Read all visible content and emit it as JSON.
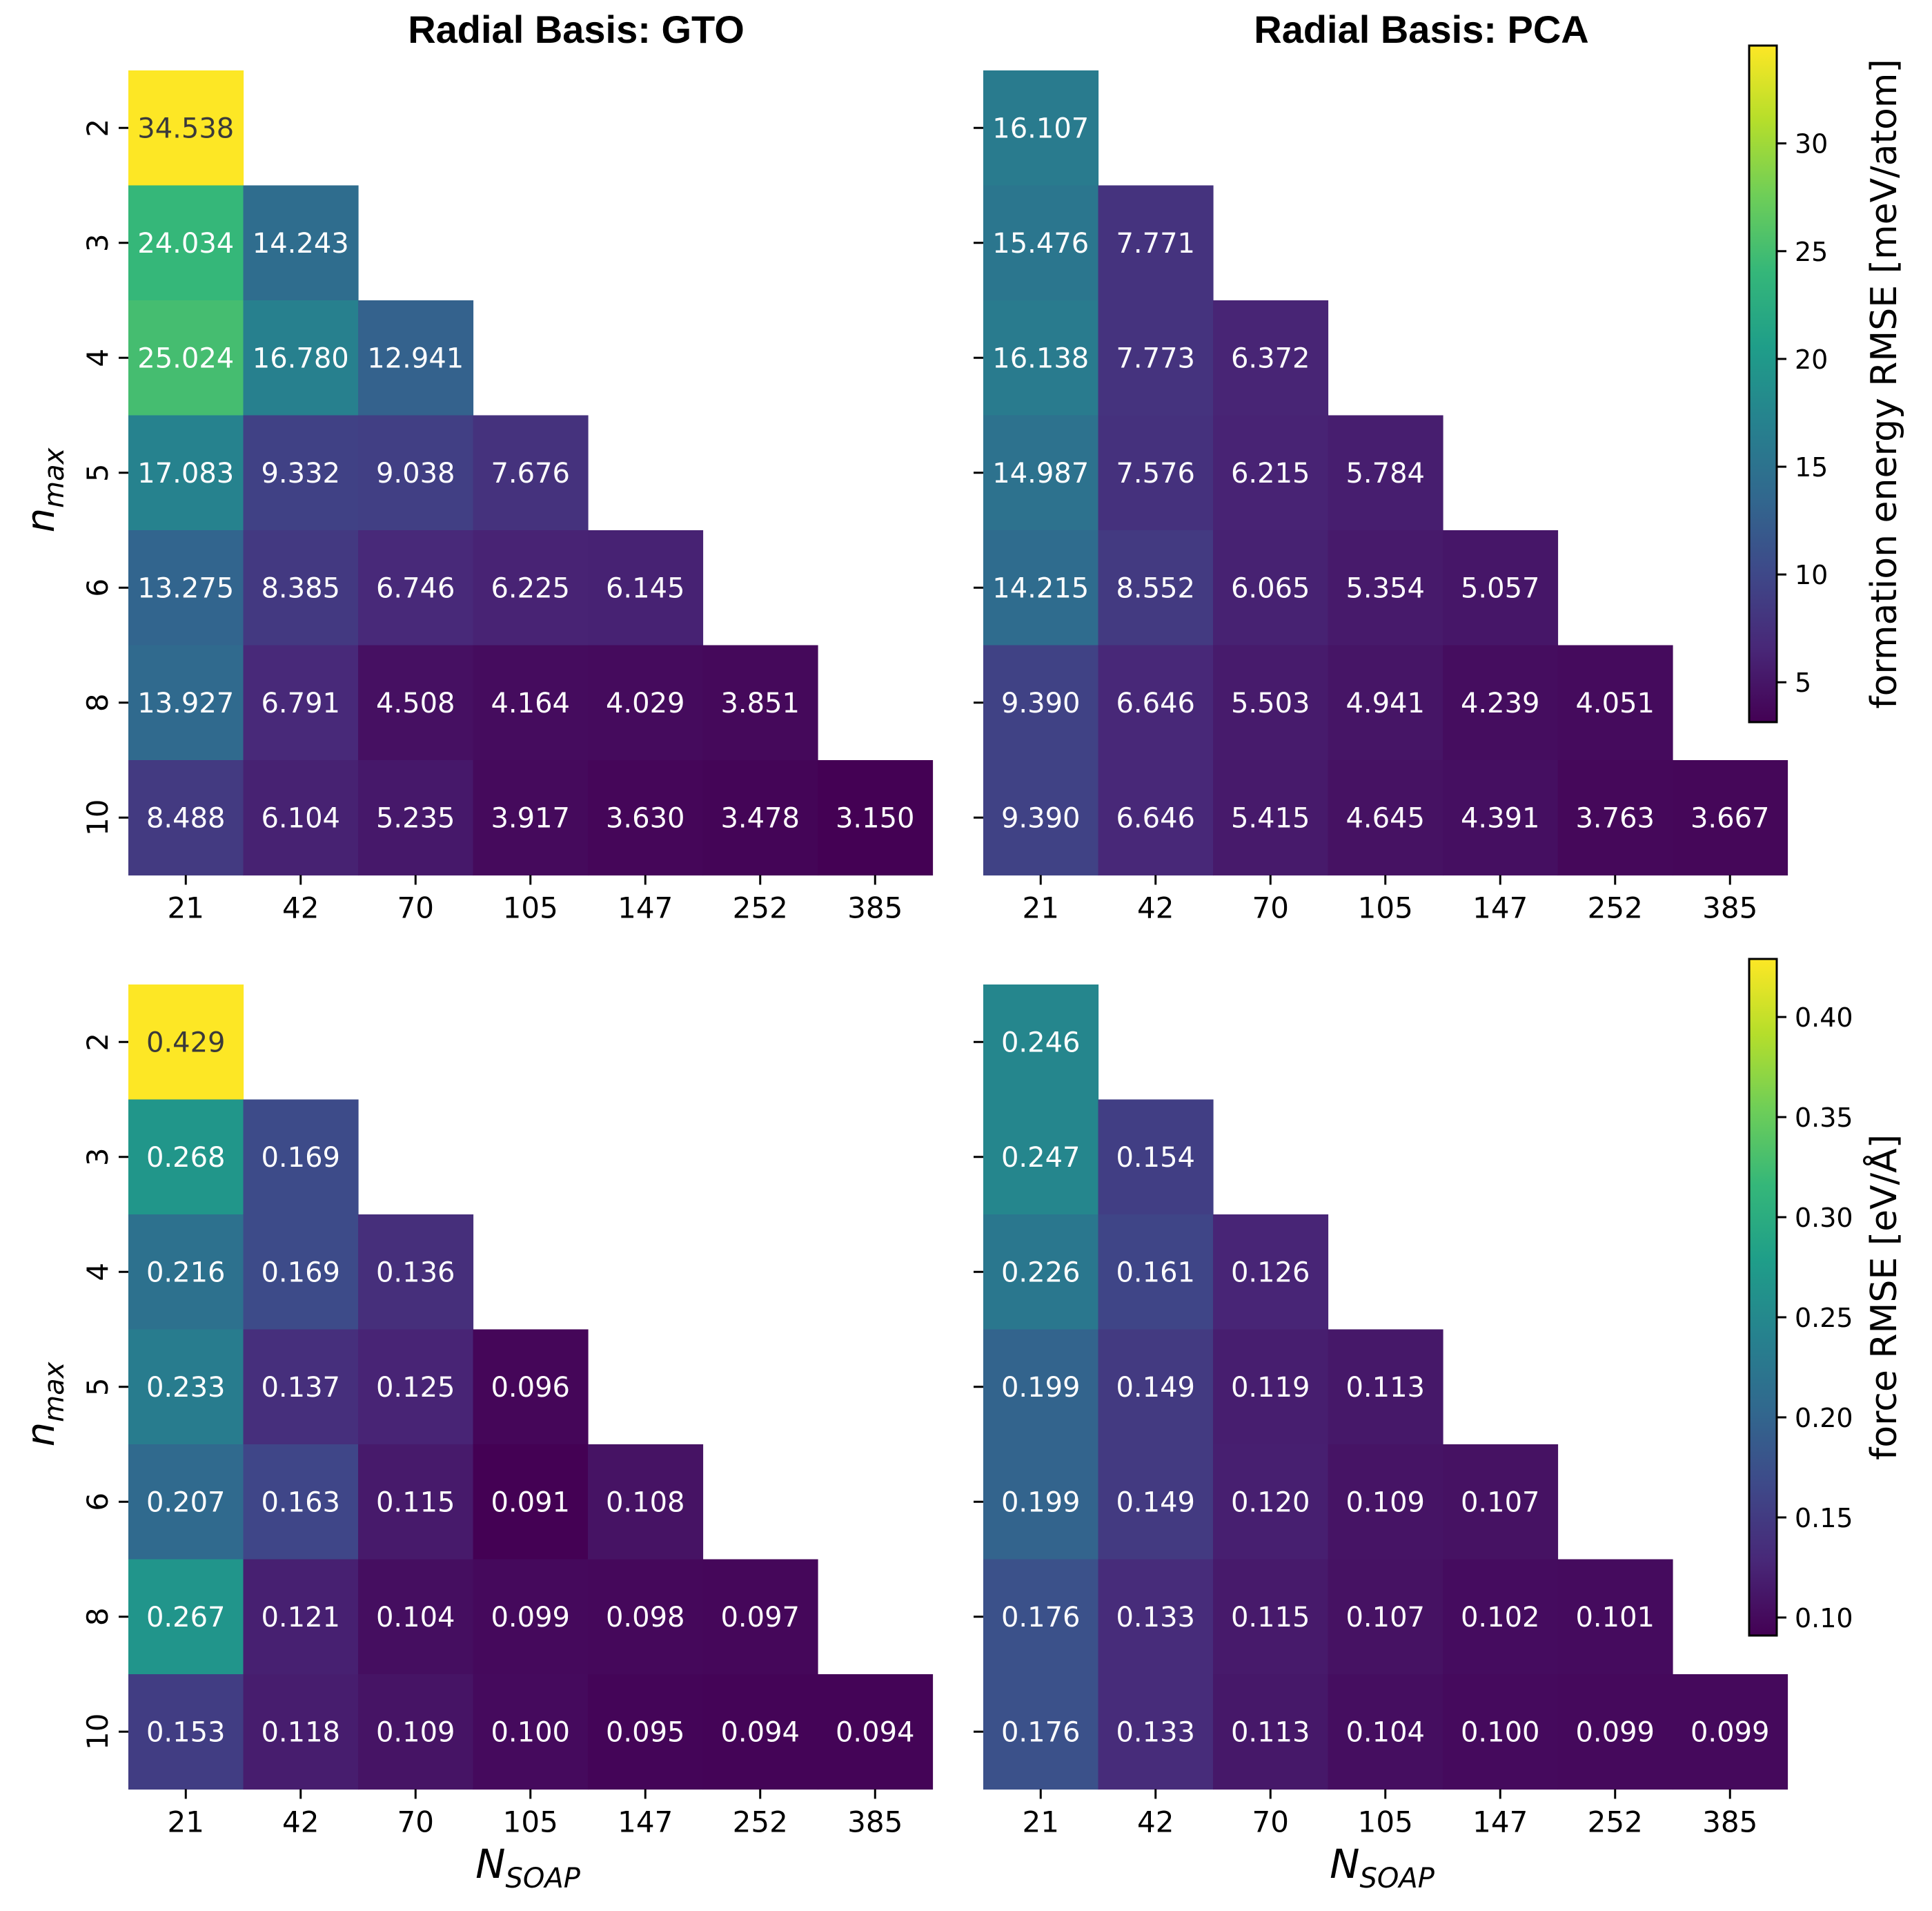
{
  "colors": {
    "viridis_stops": [
      "#440154",
      "#482878",
      "#3e4989",
      "#31688e",
      "#26828e",
      "#1f9e89",
      "#35b779",
      "#6ece58",
      "#b5de2b",
      "#fde725"
    ],
    "dark_text": "#3a3a3a",
    "light_text": "#ffffff"
  },
  "chart_data": [
    {
      "type": "heatmap",
      "title": "Radial Basis: GTO",
      "xlabel": "",
      "ylabel": "n_max",
      "x_ticks": [
        "21",
        "42",
        "70",
        "105",
        "147",
        "252",
        "385"
      ],
      "y_ticks": [
        "2",
        "3",
        "4",
        "5",
        "6",
        "8",
        "10"
      ],
      "values": [
        [
          "34.538",
          null,
          null,
          null,
          null,
          null,
          null
        ],
        [
          "24.034",
          "14.243",
          null,
          null,
          null,
          null,
          null
        ],
        [
          "25.024",
          "16.780",
          "12.941",
          null,
          null,
          null,
          null
        ],
        [
          "17.083",
          "9.332",
          "9.038",
          "7.676",
          null,
          null,
          null
        ],
        [
          "13.275",
          "8.385",
          "6.746",
          "6.225",
          "6.145",
          null,
          null
        ],
        [
          "13.927",
          "6.791",
          "4.508",
          "4.164",
          "4.029",
          "3.851",
          null
        ],
        [
          "8.488",
          "6.104",
          "5.235",
          "3.917",
          "3.630",
          "3.478",
          "3.150"
        ]
      ],
      "color_range": [
        3.15,
        34.538
      ]
    },
    {
      "type": "heatmap",
      "title": "Radial Basis: PCA",
      "xlabel": "",
      "ylabel": "",
      "x_ticks": [
        "21",
        "42",
        "70",
        "105",
        "147",
        "252",
        "385"
      ],
      "y_ticks": [],
      "values": [
        [
          "16.107",
          null,
          null,
          null,
          null,
          null,
          null
        ],
        [
          "15.476",
          "7.771",
          null,
          null,
          null,
          null,
          null
        ],
        [
          "16.138",
          "7.773",
          "6.372",
          null,
          null,
          null,
          null
        ],
        [
          "14.987",
          "7.576",
          "6.215",
          "5.784",
          null,
          null,
          null
        ],
        [
          "14.215",
          "8.552",
          "6.065",
          "5.354",
          "5.057",
          null,
          null
        ],
        [
          "9.390",
          "6.646",
          "5.503",
          "4.941",
          "4.239",
          "4.051",
          null
        ],
        [
          "9.390",
          "6.646",
          "5.415",
          "4.645",
          "4.391",
          "3.763",
          "3.667"
        ]
      ],
      "color_range": [
        3.15,
        34.538
      ]
    },
    {
      "type": "heatmap",
      "title": "",
      "xlabel": "N_SOAP",
      "ylabel": "n_max",
      "x_ticks": [
        "21",
        "42",
        "70",
        "105",
        "147",
        "252",
        "385"
      ],
      "y_ticks": [
        "2",
        "3",
        "4",
        "5",
        "6",
        "8",
        "10"
      ],
      "values": [
        [
          "0.429",
          null,
          null,
          null,
          null,
          null,
          null
        ],
        [
          "0.268",
          "0.169",
          null,
          null,
          null,
          null,
          null
        ],
        [
          "0.216",
          "0.169",
          "0.136",
          null,
          null,
          null,
          null
        ],
        [
          "0.233",
          "0.137",
          "0.125",
          "0.096",
          null,
          null,
          null
        ],
        [
          "0.207",
          "0.163",
          "0.115",
          "0.091",
          "0.108",
          null,
          null
        ],
        [
          "0.267",
          "0.121",
          "0.104",
          "0.099",
          "0.098",
          "0.097",
          null
        ],
        [
          "0.153",
          "0.118",
          "0.109",
          "0.100",
          "0.095",
          "0.094",
          "0.094"
        ]
      ],
      "color_range": [
        0.091,
        0.429
      ]
    },
    {
      "type": "heatmap",
      "title": "",
      "xlabel": "N_SOAP",
      "ylabel": "",
      "x_ticks": [
        "21",
        "42",
        "70",
        "105",
        "147",
        "252",
        "385"
      ],
      "y_ticks": [],
      "values": [
        [
          "0.246",
          null,
          null,
          null,
          null,
          null,
          null
        ],
        [
          "0.247",
          "0.154",
          null,
          null,
          null,
          null,
          null
        ],
        [
          "0.226",
          "0.161",
          "0.126",
          null,
          null,
          null,
          null
        ],
        [
          "0.199",
          "0.149",
          "0.119",
          "0.113",
          null,
          null,
          null
        ],
        [
          "0.199",
          "0.149",
          "0.120",
          "0.109",
          "0.107",
          null,
          null
        ],
        [
          "0.176",
          "0.133",
          "0.115",
          "0.107",
          "0.102",
          "0.101",
          null
        ],
        [
          "0.176",
          "0.133",
          "0.113",
          "0.104",
          "0.100",
          "0.099",
          "0.099"
        ]
      ],
      "color_range": [
        0.091,
        0.429
      ]
    }
  ],
  "colorbars": [
    {
      "label": "formation energy RMSE [meV/atom]",
      "range": [
        3.15,
        34.538
      ],
      "ticks": [
        "5",
        "10",
        "15",
        "20",
        "25",
        "30"
      ]
    },
    {
      "label": "force RMSE [eV/Å]",
      "range": [
        0.091,
        0.429
      ],
      "ticks": [
        "0.10",
        "0.15",
        "0.20",
        "0.25",
        "0.30",
        "0.35",
        "0.40"
      ]
    }
  ]
}
